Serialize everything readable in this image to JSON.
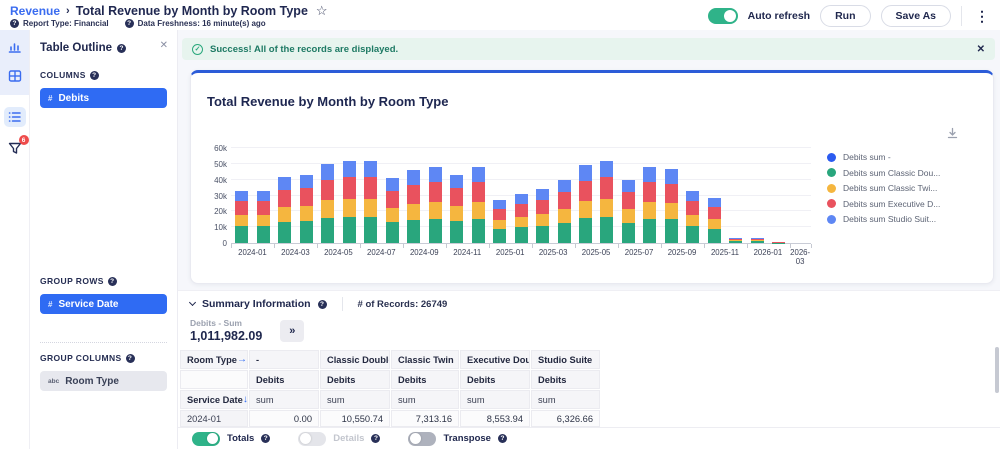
{
  "icons": {
    "star": "☆",
    "kebab": "⋮",
    "close": "✕",
    "help": "?",
    "check": "✓",
    "hash": "#",
    "abc": "abc",
    "expand": "»",
    "arrow_right": "→",
    "arrow_down": "↓",
    "sep": "›"
  },
  "colors": {
    "accent_blue": "#2f6bf3",
    "toggle_green": "#2fb389",
    "banner_bg": "#e7f4ee",
    "card_top_border": "#2c5cd8",
    "badge_red": "#ee4b4b"
  },
  "header": {
    "breadcrumb": {
      "parent": "Revenue",
      "title": "Total Revenue by Month by Room Type"
    },
    "meta": [
      {
        "text": "Report Type: Financial"
      },
      {
        "text": "Data Freshness: 16 minute(s) ago"
      }
    ],
    "auto_refresh": "Auto refresh",
    "run": "Run",
    "save_as": "Save As"
  },
  "rail": {
    "filter_badge": "6"
  },
  "panel": {
    "title": "Table Outline",
    "columns_label": "COLUMNS",
    "columns_chip": "Debits",
    "group_rows_label": "GROUP ROWS",
    "group_rows_chip": "Service Date",
    "group_columns_label": "GROUP COLUMNS",
    "group_columns_chip": "Room Type"
  },
  "banner": {
    "message": "Success! All of the records are displayed."
  },
  "chart": {
    "title": "Total Revenue by Month by Room Type"
  },
  "chart_data": {
    "type": "bar",
    "stacked": true,
    "title": "Total Revenue by Month by Room Type",
    "unit": "thousands (k)",
    "ylim": [
      0,
      60
    ],
    "ytick_labels": [
      "0",
      "10k",
      "20k",
      "30k",
      "40k",
      "50k",
      "60k"
    ],
    "grid": true,
    "legend_position": "right",
    "x": [
      "2024-01",
      "2024-02",
      "2024-03",
      "2024-04",
      "2024-05",
      "2024-06",
      "2024-07",
      "2024-08",
      "2024-09",
      "2024-10",
      "2024-11",
      "2024-12",
      "2025-01",
      "2025-02",
      "2025-03",
      "2025-04",
      "2025-05",
      "2025-06",
      "2025-07",
      "2025-08",
      "2025-09",
      "2025-10",
      "2025-11",
      "2025-12",
      "2026-01",
      "2026-02",
      "2026-03"
    ],
    "x_tick_labels": [
      "2024-01",
      "2024-03",
      "2024-05",
      "2024-07",
      "2024-09",
      "2024-11",
      "2025-01",
      "2025-03",
      "2025-05",
      "2025-07",
      "2025-09",
      "2025-11",
      "2026-01",
      "2026-03"
    ],
    "series": [
      {
        "name": "Debits sum -",
        "label": "Debits sum -",
        "color": "#2b5bf0",
        "values": [
          0,
          0,
          0,
          0,
          0,
          0,
          0,
          0,
          0,
          0,
          0,
          0,
          0,
          0,
          0,
          0,
          0,
          0,
          0,
          0,
          0,
          0,
          0,
          0,
          0,
          0,
          0
        ]
      },
      {
        "name": "Debits sum Classic Double",
        "label": "Debits sum Classic Dou...",
        "color": "#29a67d",
        "values": [
          10.55,
          10.6,
          13.4,
          13.8,
          16.0,
          16.6,
          16.6,
          13.1,
          14.7,
          15.4,
          13.8,
          15.4,
          8.6,
          9.9,
          10.9,
          12.8,
          15.7,
          16.6,
          12.8,
          15.4,
          15.0,
          10.6,
          9.0,
          1.1,
          1.0,
          0.2,
          0
        ]
      },
      {
        "name": "Debits sum Classic Twin",
        "label": "Debits sum Classic Twi...",
        "color": "#f5b63f",
        "values": [
          7.31,
          7.3,
          9.2,
          9.5,
          11.0,
          11.4,
          11.4,
          9.0,
          10.1,
          10.6,
          9.5,
          10.6,
          5.9,
          6.8,
          7.5,
          8.8,
          10.8,
          11.4,
          8.8,
          10.6,
          10.3,
          7.3,
          6.2,
          0.8,
          0.7,
          0.1,
          0
        ]
      },
      {
        "name": "Debits sum Executive Double",
        "label": "Debits sum Executive D...",
        "color": "#e9525e",
        "values": [
          8.55,
          8.6,
          10.9,
          11.2,
          13.0,
          13.5,
          13.5,
          10.7,
          12.0,
          12.5,
          11.2,
          12.5,
          7.0,
          8.1,
          8.8,
          10.4,
          12.7,
          13.5,
          10.4,
          12.5,
          12.2,
          8.6,
          7.3,
          0.9,
          0.8,
          0.2,
          0
        ]
      },
      {
        "name": "Debits sum Studio Suite",
        "label": "Debits sum Studio Suit...",
        "color": "#5e87f4",
        "values": [
          6.33,
          6.6,
          8.4,
          8.6,
          10.0,
          10.4,
          10.4,
          8.2,
          9.2,
          9.6,
          8.6,
          9.6,
          5.4,
          6.2,
          6.8,
          8.0,
          9.8,
          10.4,
          8.0,
          9.6,
          9.4,
          6.6,
          5.6,
          0.7,
          0.6,
          0.1,
          0
        ]
      }
    ]
  },
  "summary": {
    "title": "Summary Information",
    "records": "# of Records: 26749",
    "metric_label": "Debits - Sum",
    "metric_value": "1,011,982.09"
  },
  "table": {
    "row_dim": "Room Type",
    "col_dim": "Service Date",
    "columns": [
      "-",
      "Classic Double",
      "Classic Twin",
      "Executive Double",
      "Studio Suite"
    ],
    "measure": "Debits",
    "agg": "sum",
    "rows": [
      {
        "label": "2024-01",
        "values": [
          "0.00",
          "10,550.74",
          "7,313.16",
          "8,553.94",
          "6,326.66"
        ]
      }
    ]
  },
  "toggles": [
    {
      "label": "Totals",
      "on": true,
      "disabled": false
    },
    {
      "label": "Details",
      "on": false,
      "disabled": true
    },
    {
      "label": "Transpose",
      "on": false,
      "disabled": false
    }
  ]
}
